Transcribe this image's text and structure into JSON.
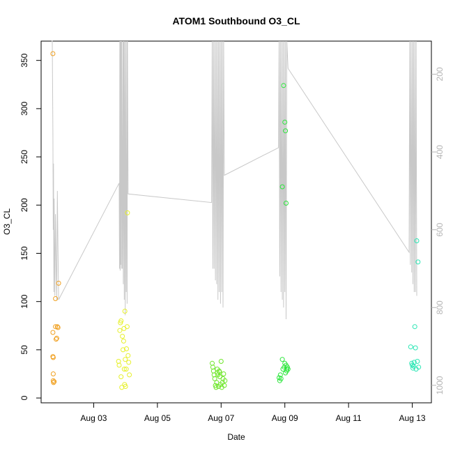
{
  "chart_data": {
    "type": "scatter",
    "title": "ATOM1 Southbound O3_CL",
    "xlabel": "Date",
    "ylabel": "O3_CL",
    "x_ticks": [
      "Aug 03",
      "Aug 05",
      "Aug 07",
      "Aug 09",
      "Aug 11",
      "Aug 13"
    ],
    "x_tick_days": [
      3,
      5,
      7,
      9,
      11,
      13
    ],
    "xlim": [
      1.35,
      13.6
    ],
    "ylim": [
      -5,
      370
    ],
    "y_ticks": [
      "0",
      "50",
      "100",
      "150",
      "200",
      "250",
      "300",
      "350"
    ],
    "y_tick_values": [
      0,
      50,
      100,
      150,
      200,
      250,
      300,
      350
    ],
    "secondary_axis": {
      "side": "right",
      "reversed": true,
      "ticks": [
        "200",
        "400",
        "600",
        "800",
        "1000"
      ],
      "tick_values": [
        200,
        400,
        600,
        800,
        1000
      ],
      "ylim": [
        1045,
        115
      ],
      "color": "#b4b4b4"
    },
    "grid": false,
    "legend": "none",
    "point_colors": {
      "Aug 01-02": "#f0a020",
      "Aug 03-04": "#e6f02a",
      "Aug 06-07": "#6ee62a",
      "Aug 08-09": "#2ae63a",
      "Aug 13": "#2ae6b4"
    },
    "line_color": "#c8c8c8",
    "series": [
      {
        "name": "",
        "points": [
          [
            1.72,
            357
          ],
          [
            1.72,
            68
          ],
          [
            1.72,
            43
          ],
          [
            1.73,
            42
          ],
          [
            1.73,
            25
          ],
          [
            1.73,
            18
          ],
          [
            1.74,
            16
          ],
          [
            1.76,
            17
          ],
          [
            1.8,
            103
          ],
          [
            1.8,
            74
          ],
          [
            1.82,
            61
          ],
          [
            1.84,
            62
          ],
          [
            1.86,
            74
          ],
          [
            1.88,
            73
          ],
          [
            1.9,
            119
          ],
          [
            3.78,
            38
          ],
          [
            3.8,
            34
          ],
          [
            3.82,
            70
          ],
          [
            3.84,
            78
          ],
          [
            3.86,
            80
          ],
          [
            3.86,
            22
          ],
          [
            3.88,
            11
          ],
          [
            3.9,
            64
          ],
          [
            3.92,
            50
          ],
          [
            3.94,
            59
          ],
          [
            3.95,
            72
          ],
          [
            3.96,
            30
          ],
          [
            3.97,
            14
          ],
          [
            3.98,
            90
          ],
          [
            3.99,
            40
          ],
          [
            4.0,
            12
          ],
          [
            4.02,
            30
          ],
          [
            4.03,
            51
          ],
          [
            4.05,
            74
          ],
          [
            4.06,
            192
          ],
          [
            4.08,
            44
          ],
          [
            4.1,
            37
          ],
          [
            4.12,
            24
          ],
          [
            6.72,
            36
          ],
          [
            6.74,
            32
          ],
          [
            6.76,
            28
          ],
          [
            6.78,
            24
          ],
          [
            6.8,
            20
          ],
          [
            6.82,
            13
          ],
          [
            6.84,
            11
          ],
          [
            6.86,
            16
          ],
          [
            6.88,
            26
          ],
          [
            6.9,
            24
          ],
          [
            6.92,
            12
          ],
          [
            6.94,
            28
          ],
          [
            6.96,
            22
          ],
          [
            6.98,
            14
          ],
          [
            7.0,
            38
          ],
          [
            7.02,
            11
          ],
          [
            7.04,
            16
          ],
          [
            7.06,
            20
          ],
          [
            7.08,
            25
          ],
          [
            7.1,
            13
          ],
          [
            7.12,
            18
          ],
          [
            6.88,
            30
          ],
          [
            6.95,
            27
          ],
          [
            8.82,
            21
          ],
          [
            8.84,
            18
          ],
          [
            8.86,
            24
          ],
          [
            8.88,
            20
          ],
          [
            8.92,
            219
          ],
          [
            8.92,
            40
          ],
          [
            8.94,
            30
          ],
          [
            8.96,
            324
          ],
          [
            8.98,
            32
          ],
          [
            9.0,
            286
          ],
          [
            9.0,
            36
          ],
          [
            9.02,
            277
          ],
          [
            9.02,
            26
          ],
          [
            9.04,
            202
          ],
          [
            9.04,
            34
          ],
          [
            9.06,
            30
          ],
          [
            9.06,
            28
          ],
          [
            9.08,
            32
          ],
          [
            9.1,
            30
          ],
          [
            12.95,
            53
          ],
          [
            12.98,
            36
          ],
          [
            13.0,
            34
          ],
          [
            13.02,
            31
          ],
          [
            13.04,
            33
          ],
          [
            13.06,
            37
          ],
          [
            13.08,
            74
          ],
          [
            13.1,
            52
          ],
          [
            13.12,
            30
          ],
          [
            13.14,
            163
          ],
          [
            13.16,
            38
          ],
          [
            13.18,
            141
          ],
          [
            13.2,
            32
          ]
        ]
      }
    ],
    "secondary_line": [
      [
        1.68,
        115
      ],
      [
        1.7,
        115
      ],
      [
        1.72,
        350
      ],
      [
        1.73,
        600
      ],
      [
        1.74,
        430
      ],
      [
        1.75,
        760
      ],
      [
        1.76,
        520
      ],
      [
        1.77,
        640
      ],
      [
        1.78,
        770
      ],
      [
        1.8,
        560
      ],
      [
        1.82,
        690
      ],
      [
        1.84,
        780
      ],
      [
        1.86,
        500
      ],
      [
        1.88,
        650
      ],
      [
        1.9,
        780
      ],
      [
        3.8,
        480
      ],
      [
        3.81,
        700
      ],
      [
        3.82,
        115
      ],
      [
        3.83,
        705
      ],
      [
        3.84,
        115
      ],
      [
        3.85,
        690
      ],
      [
        3.86,
        115
      ],
      [
        3.87,
        700
      ],
      [
        3.88,
        115
      ],
      [
        3.9,
        700
      ],
      [
        3.92,
        115
      ],
      [
        3.93,
        740
      ],
      [
        3.94,
        115
      ],
      [
        3.96,
        780
      ],
      [
        3.97,
        115
      ],
      [
        3.99,
        820
      ],
      [
        4.0,
        115
      ],
      [
        4.02,
        760
      ],
      [
        4.04,
        115
      ],
      [
        4.05,
        790
      ],
      [
        4.06,
        115
      ],
      [
        4.08,
        508
      ],
      [
        6.7,
        530
      ],
      [
        6.72,
        115
      ],
      [
        6.74,
        700
      ],
      [
        6.76,
        115
      ],
      [
        6.78,
        700
      ],
      [
        6.8,
        115
      ],
      [
        6.82,
        730
      ],
      [
        6.84,
        115
      ],
      [
        6.86,
        740
      ],
      [
        6.88,
        115
      ],
      [
        6.9,
        780
      ],
      [
        6.92,
        115
      ],
      [
        6.94,
        760
      ],
      [
        6.96,
        115
      ],
      [
        6.98,
        790
      ],
      [
        7.0,
        115
      ],
      [
        7.02,
        760
      ],
      [
        7.04,
        115
      ],
      [
        7.06,
        800
      ],
      [
        7.08,
        115
      ],
      [
        7.1,
        460
      ],
      [
        8.8,
        389
      ],
      [
        8.82,
        115
      ],
      [
        8.84,
        720
      ],
      [
        8.86,
        115
      ],
      [
        8.88,
        760
      ],
      [
        8.9,
        115
      ],
      [
        8.92,
        780
      ],
      [
        8.94,
        115
      ],
      [
        8.96,
        800
      ],
      [
        8.98,
        115
      ],
      [
        9.0,
        760
      ],
      [
        9.02,
        115
      ],
      [
        9.04,
        830
      ],
      [
        9.06,
        115
      ],
      [
        9.1,
        185
      ],
      [
        12.9,
        658
      ],
      [
        12.92,
        115
      ],
      [
        12.94,
        690
      ],
      [
        12.96,
        115
      ],
      [
        12.98,
        710
      ],
      [
        13.0,
        115
      ],
      [
        13.02,
        740
      ],
      [
        13.04,
        115
      ],
      [
        13.06,
        760
      ],
      [
        13.08,
        115
      ],
      [
        13.1,
        760
      ],
      [
        13.12,
        115
      ],
      [
        13.14,
        770
      ]
    ]
  }
}
